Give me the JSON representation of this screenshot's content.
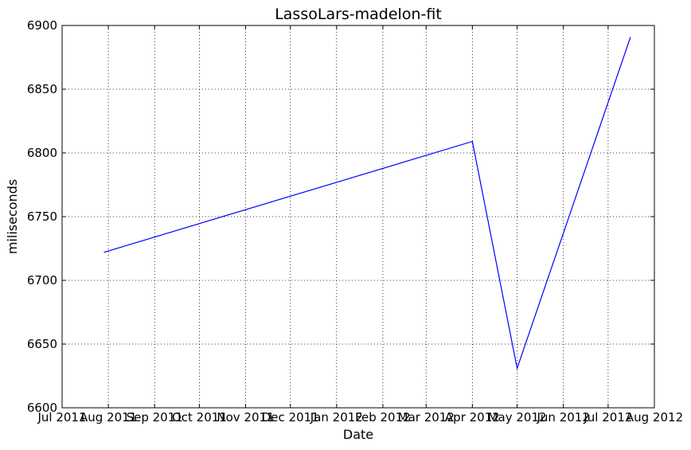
{
  "chart_data": {
    "type": "line",
    "title": "LassoLars-madelon-fit",
    "xlabel": "Date",
    "ylabel": "miliseconds",
    "x_ticks": [
      "Jul 2011",
      "Aug 2011",
      "Sep 2011",
      "Oct 2011",
      "Nov 2011",
      "Dec 2011",
      "Jan 2012",
      "Feb 2012",
      "Mar 2012",
      "Apr 2012",
      "May 2012",
      "Jun 2012",
      "Jul 2012",
      "Aug 2012"
    ],
    "y_ticks": [
      6600,
      6650,
      6700,
      6750,
      6800,
      6850,
      6900
    ],
    "xlim": [
      "2011-07-01",
      "2012-08-01"
    ],
    "ylim": [
      6600,
      6900
    ],
    "grid": true,
    "series": [
      {
        "color": "#0000ff",
        "points": [
          {
            "x": "2011-07-29",
            "y": 6722
          },
          {
            "x": "2012-04-01",
            "y": 6809
          },
          {
            "x": "2012-05-01",
            "y": 6631
          },
          {
            "x": "2012-07-16",
            "y": 6891
          }
        ]
      }
    ]
  }
}
